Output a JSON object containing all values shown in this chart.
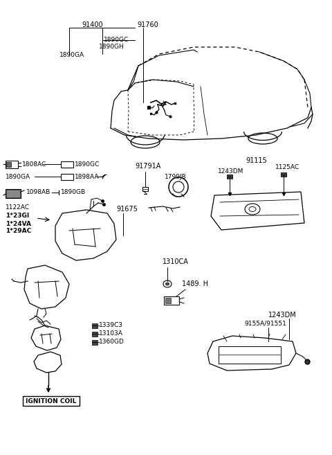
{
  "bg_color": "#ffffff",
  "lc": "#000000",
  "tc": "#000000",
  "fig_width": 4.8,
  "fig_height": 6.57,
  "dpi": 100,
  "labels": {
    "91400": "91400",
    "91760": "91760",
    "1890GC_top": "1890GC",
    "1890GH": "1890GH",
    "1890GA_top": "1890GA",
    "1808AC": "1808AC",
    "1890GC": "1890GC",
    "1890GA": "1890GA",
    "1898AA": "1898AA",
    "1098AB": "1098AB",
    "1890GB": "1890GB",
    "1122AC": "1122AC",
    "1123GI": "1*23GI",
    "1124VA": "1*24VA",
    "1129AC": "1*29AC",
    "91675": "91675",
    "91791A": "91791A",
    "1799JB": "1799JB",
    "91115": "91115",
    "1243DM": "1243DM",
    "1125AC": "1125AC",
    "1310CA": "1310CA",
    "1489H": "1489. H",
    "1339C3": "1339C3",
    "13103A": "13103A",
    "1360GD": "1360GD",
    "9155A": "9155A/91551",
    "1243DM2": "1243DM",
    "IGN": "IGNITION COIL"
  }
}
